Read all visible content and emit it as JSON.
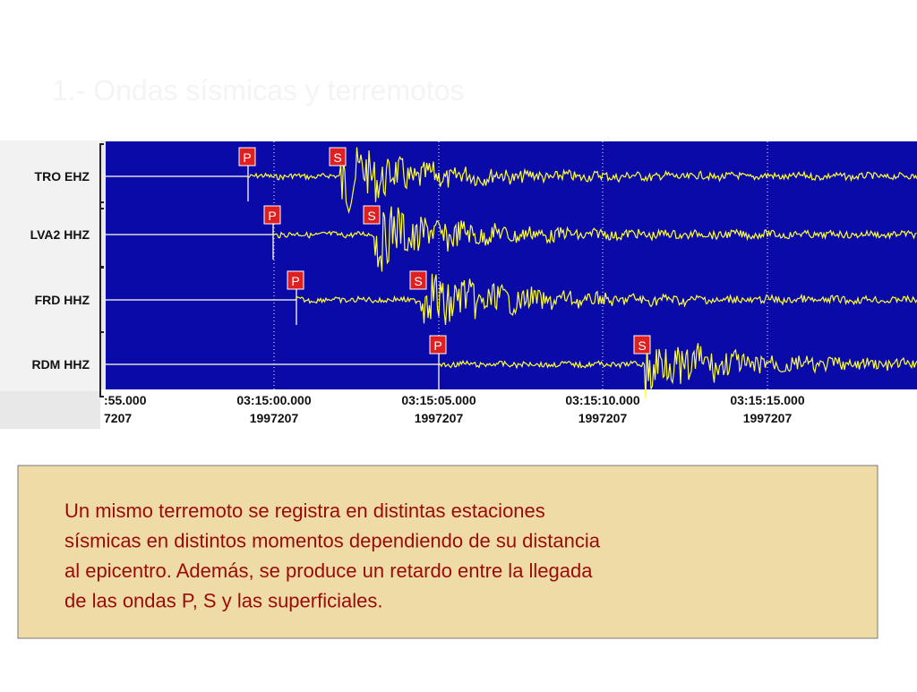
{
  "title": "1.- Ondas sísmicas y terremotos",
  "seismogram": {
    "stations": [
      "TRO EHZ",
      "LVA2 HHZ",
      "FRD HHZ",
      "RDM HHZ"
    ],
    "phase_labels": {
      "p": "P",
      "s": "S"
    },
    "time_labels": [
      {
        "time": ":55.000",
        "date": "7207"
      },
      {
        "time": "03:15:00.000",
        "date": "1997207"
      },
      {
        "time": "03:15:05.000",
        "date": "1997207"
      },
      {
        "time": "03:15:10.000",
        "date": "1997207"
      },
      {
        "time": "03:15:15.000",
        "date": "1997207"
      }
    ]
  },
  "text": {
    "lines": [
      "Un mismo terremoto se registra en distintas estaciones",
      "sísmicas en distintos momentos dependiendo de su distancia",
      "al epicentro. Además, se produce un retardo entre la llegada",
      "de las ondas P, S y las superficiales."
    ]
  }
}
